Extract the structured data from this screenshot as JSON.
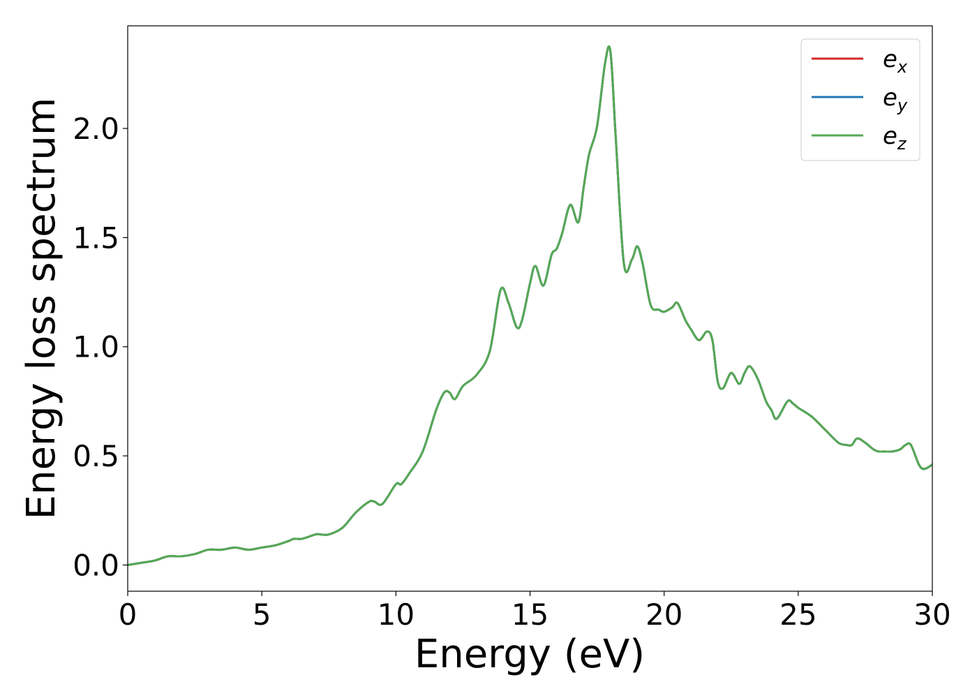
{
  "chart_data": {
    "type": "line",
    "xlabel": "Energy (eV)",
    "ylabel": "Energy loss spectrum",
    "xlim": [
      0,
      30
    ],
    "ylim": [
      -0.12,
      2.47
    ],
    "xticks": [
      "0",
      "5",
      "10",
      "15",
      "20",
      "25",
      "30"
    ],
    "yticks": [
      "0.0",
      "0.5",
      "1.0",
      "1.5",
      "2.0"
    ],
    "grid": false,
    "legend_position": "top-right",
    "series": [
      {
        "name": "e",
        "subscript": "x",
        "color": "#d62728"
      },
      {
        "name": "e",
        "subscript": "y",
        "color": "#1f77b4"
      },
      {
        "name": "e",
        "subscript": "z",
        "color": "#55a955"
      }
    ],
    "x": [
      0,
      0.5,
      1.0,
      1.5,
      2.0,
      2.5,
      3.0,
      3.5,
      4.0,
      4.5,
      5.0,
      5.5,
      6.0,
      6.2,
      6.5,
      7.0,
      7.2,
      7.5,
      8.0,
      8.5,
      9.0,
      9.2,
      9.5,
      10.0,
      10.2,
      10.5,
      11.0,
      11.5,
      11.8,
      12.0,
      12.2,
      12.5,
      13.0,
      13.5,
      13.9,
      14.2,
      14.5,
      14.7,
      15.0,
      15.2,
      15.5,
      15.8,
      16.0,
      16.2,
      16.5,
      16.8,
      17.0,
      17.2,
      17.5,
      17.8,
      18.0,
      18.2,
      18.5,
      18.8,
      19.0,
      19.2,
      19.5,
      19.8,
      20.0,
      20.3,
      20.5,
      20.8,
      21.0,
      21.3,
      21.6,
      21.8,
      22.0,
      22.2,
      22.5,
      22.8,
      23.0,
      23.2,
      23.5,
      23.8,
      24.0,
      24.2,
      24.6,
      24.8,
      25.0,
      25.5,
      26.0,
      26.5,
      26.8,
      27.0,
      27.2,
      27.5,
      27.8,
      28.0,
      28.2,
      28.5,
      28.8,
      29.0,
      29.2,
      29.5,
      29.7,
      30.0
    ],
    "values": [
      0.0,
      0.01,
      0.02,
      0.04,
      0.04,
      0.05,
      0.07,
      0.07,
      0.08,
      0.07,
      0.08,
      0.09,
      0.11,
      0.12,
      0.12,
      0.14,
      0.14,
      0.14,
      0.17,
      0.24,
      0.29,
      0.29,
      0.28,
      0.37,
      0.37,
      0.42,
      0.52,
      0.71,
      0.79,
      0.79,
      0.76,
      0.82,
      0.87,
      0.98,
      1.26,
      1.2,
      1.09,
      1.12,
      1.29,
      1.37,
      1.28,
      1.42,
      1.45,
      1.52,
      1.65,
      1.57,
      1.73,
      1.88,
      2.01,
      2.3,
      2.35,
      1.95,
      1.38,
      1.4,
      1.46,
      1.38,
      1.19,
      1.17,
      1.16,
      1.18,
      1.2,
      1.12,
      1.08,
      1.03,
      1.07,
      1.03,
      0.84,
      0.81,
      0.88,
      0.83,
      0.88,
      0.91,
      0.85,
      0.75,
      0.71,
      0.67,
      0.75,
      0.74,
      0.72,
      0.68,
      0.62,
      0.56,
      0.55,
      0.55,
      0.58,
      0.56,
      0.53,
      0.52,
      0.52,
      0.52,
      0.53,
      0.55,
      0.55,
      0.46,
      0.44,
      0.46
    ]
  }
}
